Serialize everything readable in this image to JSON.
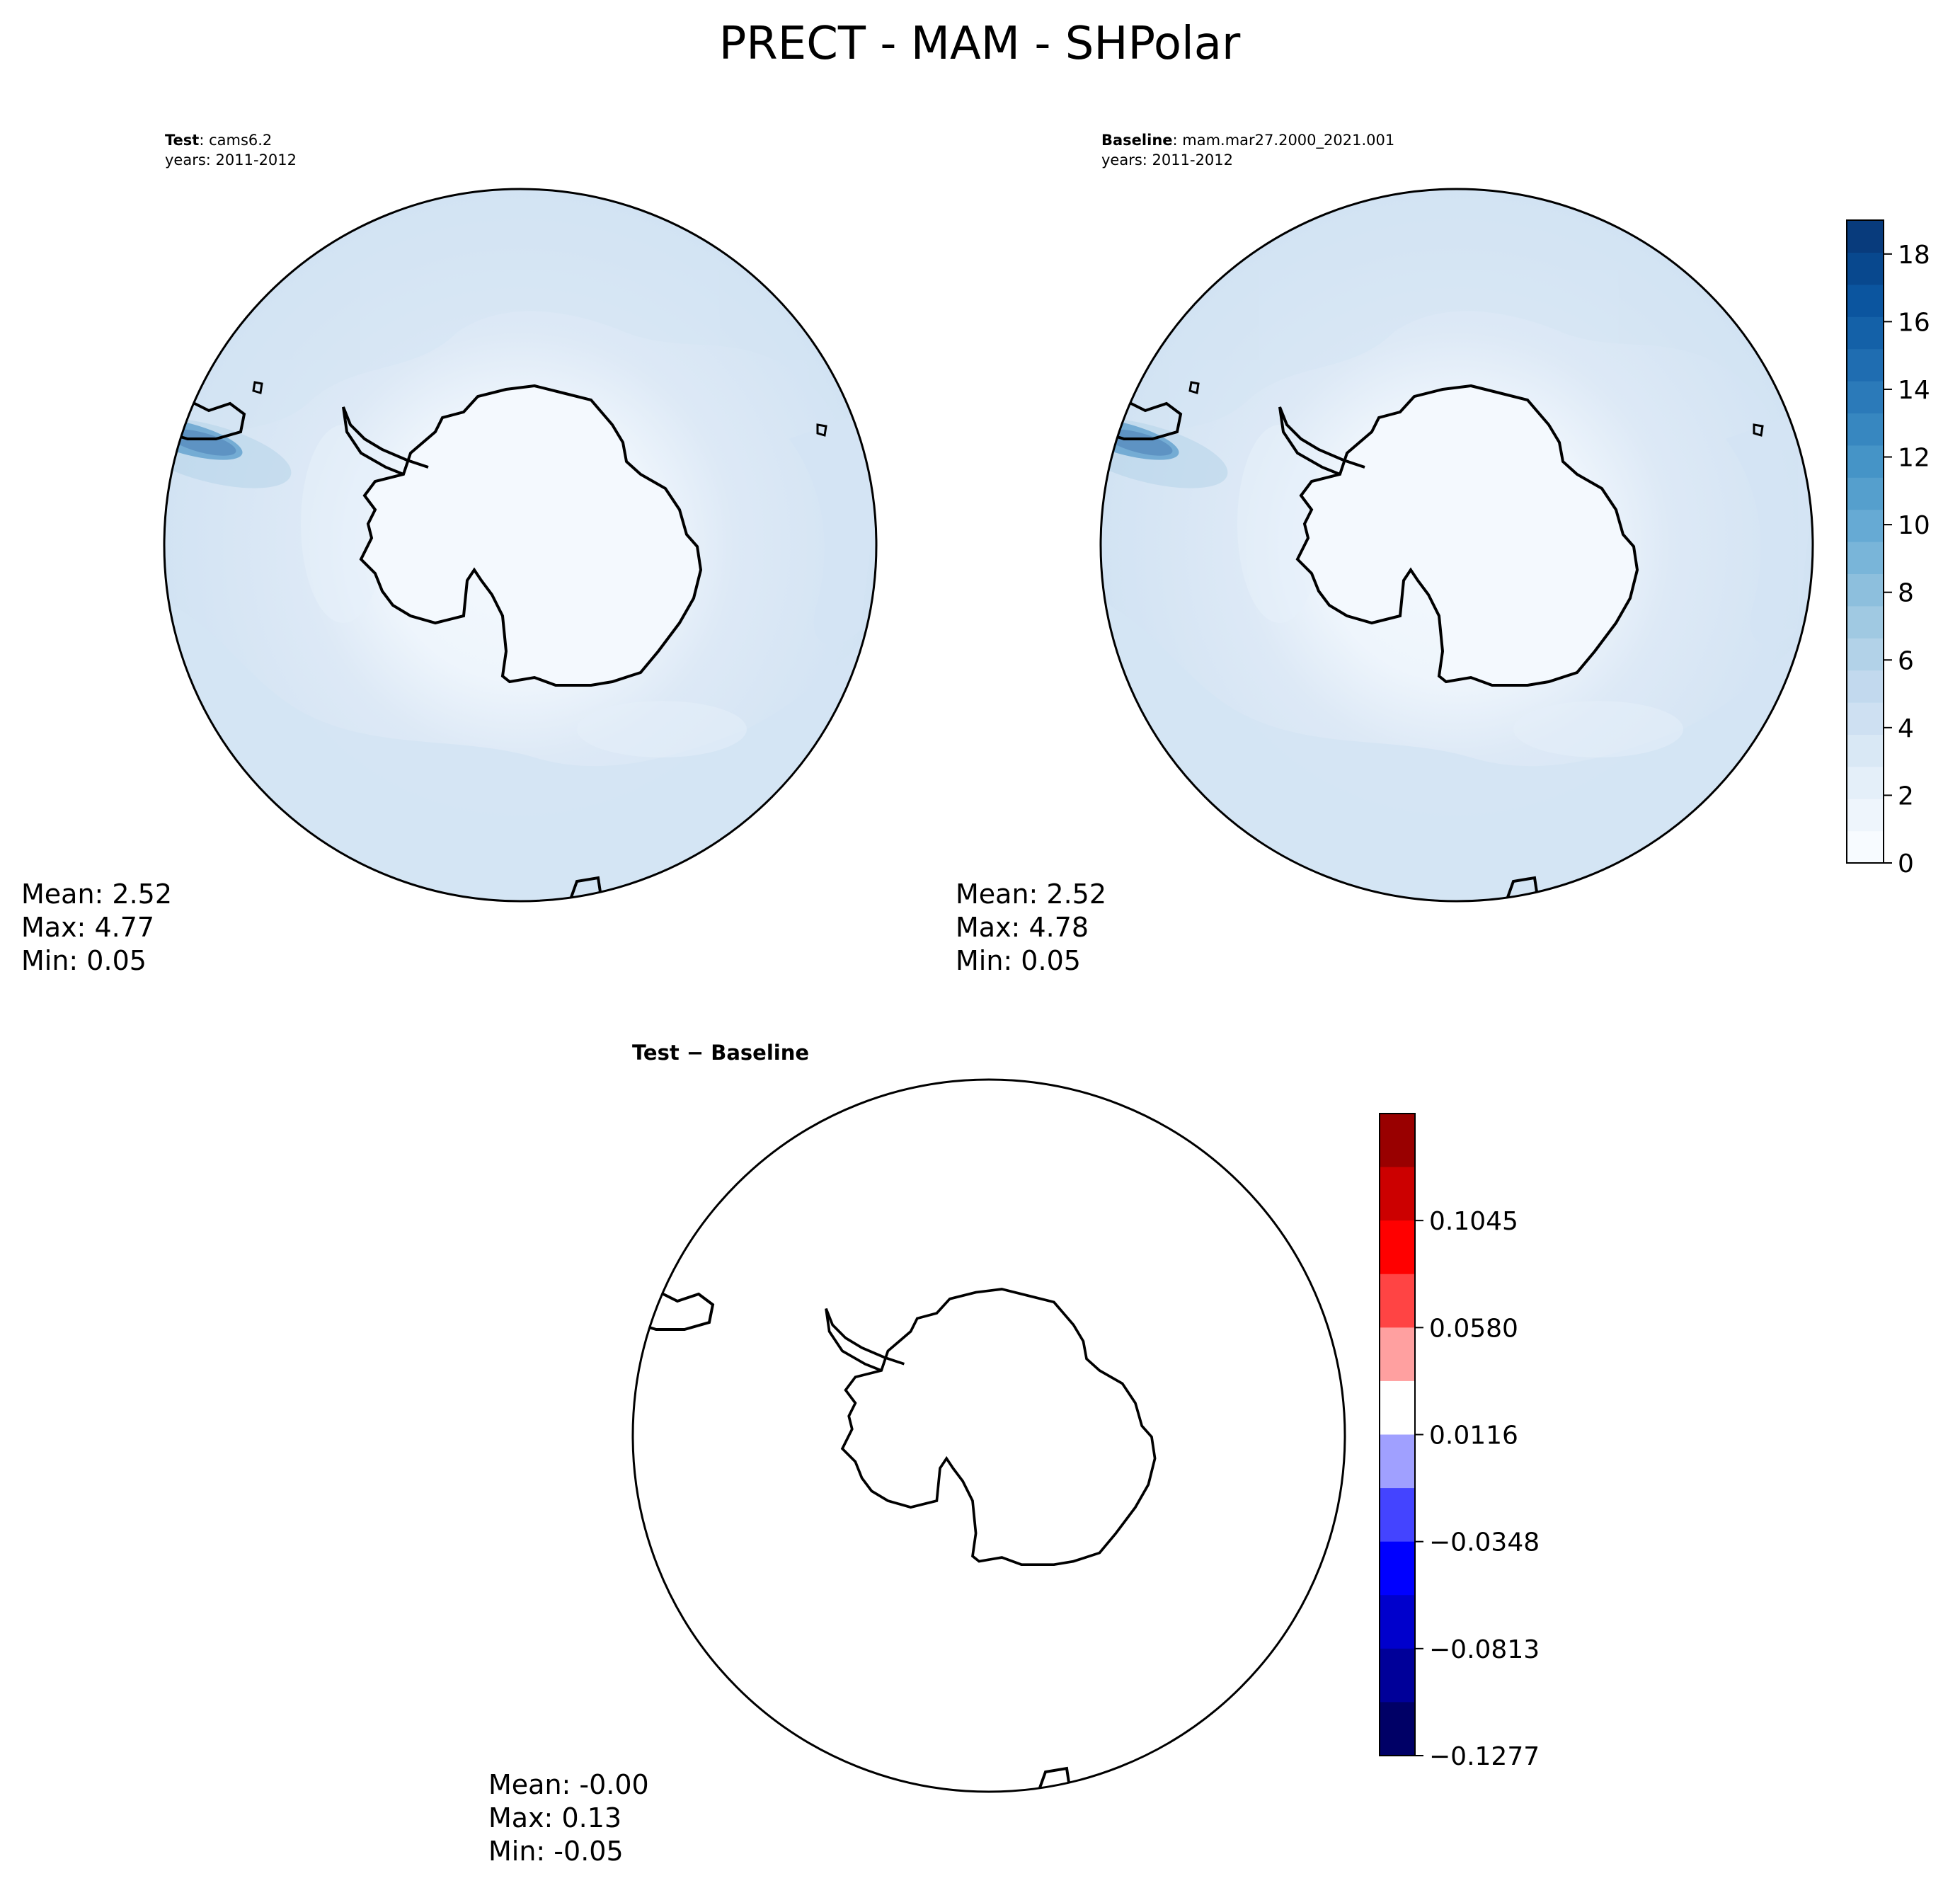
{
  "figure": {
    "title": "PRECT - MAM - SHPolar"
  },
  "panels": {
    "test": {
      "label_bold": "Test",
      "label_rest": ": cams6.2",
      "years": "years: 2011-2012",
      "stats": {
        "mean": "Mean:  2.52",
        "max": "Max:  4.77",
        "min": "Min:  0.05"
      }
    },
    "baseline": {
      "label_bold": "Baseline",
      "label_rest": ": mam.mar27.2000_2021.001",
      "years": "years: 2011-2012",
      "stats": {
        "mean": "Mean:  2.52",
        "max": "Max:  4.78",
        "min": "Min:  0.05"
      }
    },
    "diff": {
      "label": "Test − Baseline",
      "stats": {
        "mean": "Mean: -0.00",
        "max": "Max:  0.13",
        "min": "Min: -0.05"
      }
    }
  },
  "colorbars": {
    "precip": {
      "range": [
        0,
        19
      ],
      "ticks": [
        "0",
        "2",
        "4",
        "6",
        "8",
        "10",
        "12",
        "14",
        "16",
        "18"
      ],
      "colors": [
        "#f7fbff",
        "#eef5fc",
        "#e4eff9",
        "#d9e8f5",
        "#cee0f2",
        "#c2d9ee",
        "#b2d2e8",
        "#a0c9e2",
        "#8dbfdd",
        "#79b5d9",
        "#66aad4",
        "#559fcd",
        "#4594c7",
        "#3787c0",
        "#2b7ab9",
        "#1f6db1",
        "#1461a8",
        "#0b559f",
        "#08488e",
        "#083b7c"
      ]
    },
    "diff": {
      "ticks": [
        "0.1045",
        "0.0580",
        "0.0116",
        "−0.0348",
        "−0.0813",
        "−0.1277"
      ],
      "colors_top_to_bottom": [
        "#990000",
        "#cc0000",
        "#ff0000",
        "#ff4444",
        "#ffa0a0",
        "#ffffff",
        "#a0a0ff",
        "#4444ff",
        "#0000ff",
        "#0000cc",
        "#000099",
        "#000066"
      ]
    }
  }
}
